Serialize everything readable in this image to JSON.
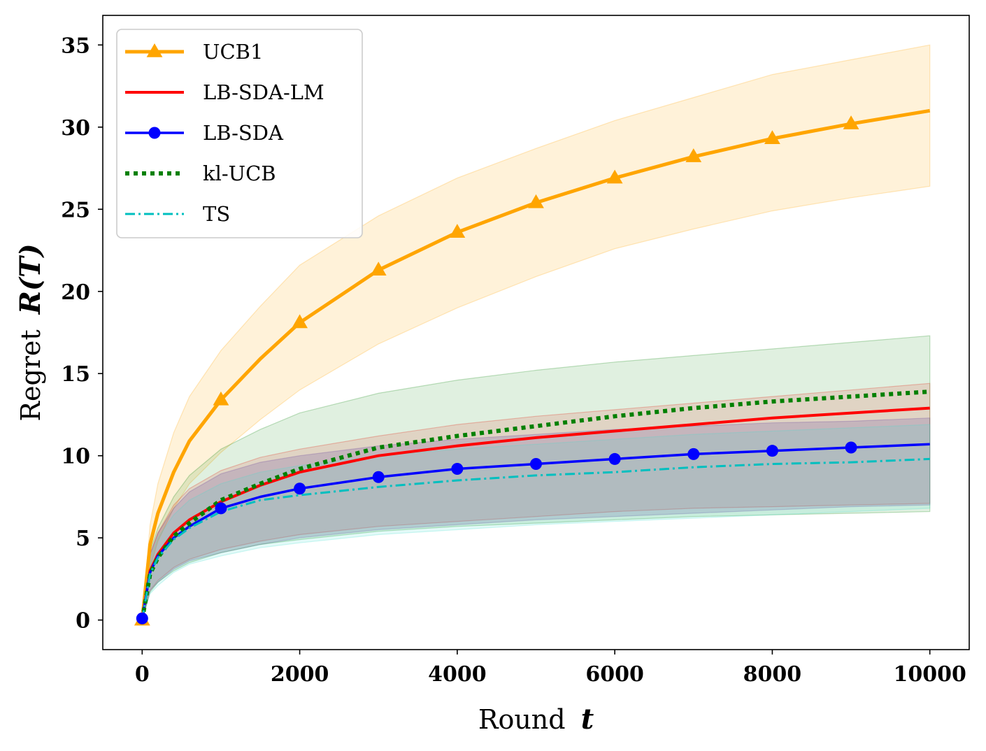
{
  "chart_data": {
    "type": "line",
    "xlabel_text": "Round",
    "xlabel_var": "t",
    "ylabel_text": "Regret",
    "ylabel_var": "R(T)",
    "xlim": [
      -500,
      10500
    ],
    "ylim": [
      -1.8,
      36.8
    ],
    "xticks": [
      0,
      2000,
      4000,
      6000,
      8000,
      10000
    ],
    "yticks": [
      0,
      5,
      10,
      15,
      20,
      25,
      30,
      35
    ],
    "x": [
      0,
      100,
      200,
      400,
      600,
      1000,
      1500,
      2000,
      3000,
      4000,
      5000,
      6000,
      7000,
      8000,
      9000,
      10000
    ],
    "legend_position": "upper-left",
    "series": [
      {
        "name": "UCB1",
        "color": "#ffa500",
        "style": "solid",
        "width": 5,
        "marker": "triangle",
        "values": [
          0,
          4.6,
          6.5,
          9.0,
          10.9,
          13.4,
          15.9,
          18.1,
          21.3,
          23.6,
          25.4,
          26.9,
          28.2,
          29.3,
          30.2,
          31.0
        ],
        "lower": [
          0,
          3.2,
          4.8,
          6.8,
          8.3,
          10.2,
          12.2,
          14.0,
          16.8,
          19.0,
          20.9,
          22.6,
          23.8,
          24.9,
          25.7,
          26.4
        ],
        "upper": [
          0,
          5.8,
          8.3,
          11.4,
          13.6,
          16.4,
          19.1,
          21.6,
          24.6,
          26.9,
          28.7,
          30.4,
          31.8,
          33.2,
          34.1,
          35.0
        ],
        "band_color": "#ffa500",
        "band_opacity": 0.15
      },
      {
        "name": "LB-SDA-LM",
        "color": "#ff0000",
        "style": "solid",
        "width": 4,
        "marker": "none",
        "values": [
          0,
          3.0,
          4.0,
          5.3,
          6.1,
          7.2,
          8.2,
          9.0,
          10.0,
          10.6,
          11.1,
          11.5,
          11.9,
          12.3,
          12.6,
          12.9
        ],
        "lower": [
          0,
          1.8,
          2.4,
          3.2,
          3.7,
          4.3,
          4.8,
          5.2,
          5.7,
          6.0,
          6.3,
          6.6,
          6.8,
          6.9,
          7.0,
          7.1
        ],
        "upper": [
          0,
          4.0,
          5.3,
          7.0,
          8.0,
          9.1,
          9.9,
          10.4,
          11.2,
          11.9,
          12.4,
          12.8,
          13.2,
          13.6,
          14.0,
          14.4
        ],
        "band_color": "#ff0000",
        "band_opacity": 0.12
      },
      {
        "name": "LB-SDA",
        "color": "#0000ff",
        "style": "solid",
        "width": 3.5,
        "marker": "circle",
        "values": [
          0.1,
          2.9,
          3.9,
          5.0,
          5.7,
          6.8,
          7.5,
          8.0,
          8.7,
          9.2,
          9.5,
          9.8,
          10.1,
          10.3,
          10.5,
          10.7
        ],
        "lower": [
          0,
          1.8,
          2.3,
          3.1,
          3.6,
          4.1,
          4.6,
          5.0,
          5.5,
          5.8,
          6.1,
          6.3,
          6.5,
          6.7,
          6.9,
          7.0
        ],
        "upper": [
          0,
          4.0,
          5.3,
          6.8,
          7.8,
          8.9,
          9.6,
          10.0,
          10.6,
          11.0,
          11.3,
          11.6,
          11.8,
          12.0,
          12.1,
          12.3
        ],
        "band_color": "#6a2cb0",
        "band_opacity": 0.2
      },
      {
        "name": "kl-UCB",
        "color": "#008000",
        "style": "dotted",
        "width": 6,
        "marker": "none",
        "values": [
          0,
          2.8,
          3.8,
          5.1,
          5.9,
          7.3,
          8.3,
          9.2,
          10.5,
          11.2,
          11.8,
          12.4,
          12.9,
          13.3,
          13.6,
          13.9
        ],
        "lower": [
          0,
          1.7,
          2.3,
          3.0,
          3.5,
          4.1,
          4.6,
          4.9,
          5.4,
          5.7,
          5.9,
          6.1,
          6.3,
          6.4,
          6.5,
          6.6
        ],
        "upper": [
          0,
          4.2,
          5.6,
          7.5,
          8.8,
          10.4,
          11.6,
          12.6,
          13.8,
          14.6,
          15.2,
          15.7,
          16.1,
          16.5,
          16.9,
          17.3
        ],
        "band_color": "#008000",
        "band_opacity": 0.12
      },
      {
        "name": "TS",
        "color": "#00bfbf",
        "style": "dashdot",
        "width": 3,
        "marker": "none",
        "values": [
          0,
          2.8,
          3.8,
          4.9,
          5.6,
          6.6,
          7.3,
          7.6,
          8.1,
          8.5,
          8.8,
          9.0,
          9.3,
          9.5,
          9.6,
          9.8
        ],
        "lower": [
          0,
          1.6,
          2.1,
          2.9,
          3.4,
          3.9,
          4.4,
          4.7,
          5.2,
          5.5,
          5.8,
          6.0,
          6.2,
          6.4,
          6.6,
          6.8
        ],
        "upper": [
          0,
          3.8,
          5.0,
          6.4,
          7.3,
          8.3,
          9.0,
          9.4,
          10.0,
          10.4,
          10.7,
          11.0,
          11.3,
          11.5,
          11.7,
          11.9
        ],
        "band_color": "#40e0d0",
        "band_opacity": 0.15
      }
    ],
    "markers": {
      "UCB1": [
        0,
        1000,
        2000,
        3000,
        4000,
        5000,
        6000,
        7000,
        8000,
        9000
      ],
      "LB-SDA": [
        0,
        1000,
        2000,
        3000,
        4000,
        5000,
        6000,
        7000,
        8000,
        9000
      ]
    }
  }
}
